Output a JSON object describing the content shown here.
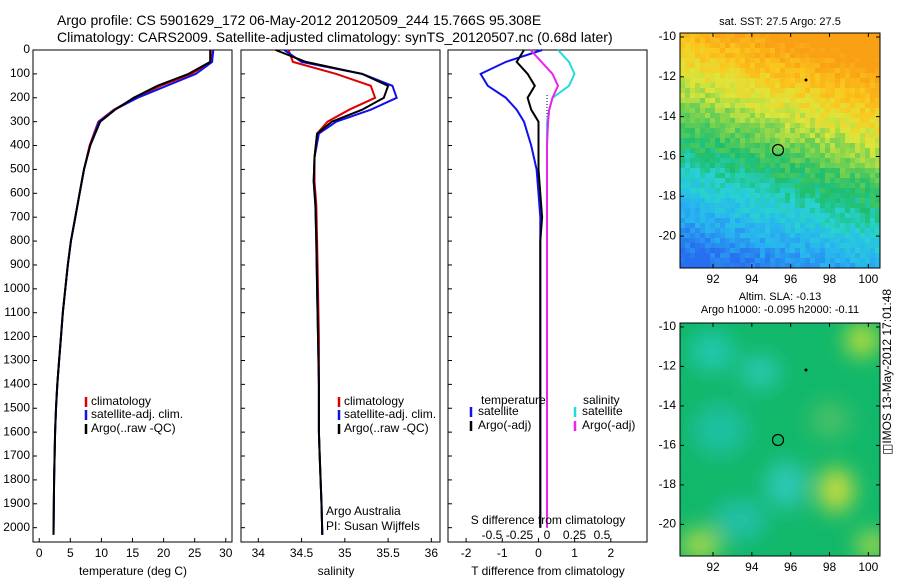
{
  "header": {
    "line1": "Argo profile: CS 5901629_172 06-May-2012 20120509_244 15.766S 95.308E",
    "line2": "Climatology: CARS2009. Satellite-adjusted climatology: synTS_20120507.nc (0.68d later)"
  },
  "colors": {
    "red": "#dd0000",
    "blue": "#1010ee",
    "black": "#000000",
    "cyan": "#22dddd",
    "magenta": "#ee22ee"
  },
  "panels": {
    "temp": {
      "xlabel": "temperature (deg C)",
      "xticks": [
        "0",
        "5",
        "10",
        "15",
        "20",
        "25",
        "30"
      ],
      "legend": [
        "climatology",
        "satellite-adj. clim.",
        "Argo(..raw -QC)"
      ]
    },
    "sal": {
      "xlabel": "salinity",
      "xticks": [
        "34",
        "34.5",
        "35",
        "35.5",
        "36"
      ],
      "legend": [
        "climatology",
        "satellite-adj. clim.",
        "Argo(..raw -QC)"
      ],
      "credit1": "Argo Australia",
      "credit2": "PI: Susan Wijffels"
    },
    "diff": {
      "xlabel": "T difference from climatology",
      "xticks": [
        "-2",
        "-1",
        "0",
        "1",
        "2"
      ],
      "top_label": "S difference from climatology",
      "top_ticks": [
        "-0.5",
        "-0.25",
        "0",
        "0.25",
        "0.5"
      ],
      "legend_left_title": "temperature",
      "legend_left": [
        "satellite",
        "Argo(-adj)"
      ],
      "legend_right_title": "salinity",
      "legend_right": [
        "satellite",
        "Argo(-adj)"
      ]
    },
    "yticks": [
      "0",
      "100",
      "200",
      "300",
      "400",
      "500",
      "600",
      "700",
      "800",
      "900",
      "1000",
      "1100",
      "1200",
      "1300",
      "1400",
      "1500",
      "1600",
      "1700",
      "1800",
      "1900",
      "2000"
    ],
    "sst_title": "sat. SST: 27.5 Argo: 27.5",
    "sla_title1": "Altim. SLA: -0.13",
    "sla_title2": "Argo h1000: -0.095 h2000: -0.11",
    "map_yticks": [
      "-10",
      "-12",
      "-14",
      "-16",
      "-18",
      "-20"
    ],
    "map_xticks": [
      "92",
      "94",
      "96",
      "98",
      "100"
    ]
  },
  "side_label": "IMOS 13-May-2012 17:01:48",
  "chart_data": [
    {
      "type": "line",
      "title": "",
      "xlabel": "temperature (deg C)",
      "ylabel": "",
      "xlim": [
        -1,
        31
      ],
      "ylim": [
        2060,
        0
      ],
      "series": [
        {
          "name": "climatology",
          "x": [
            27.9,
            27.6,
            24.5,
            19.5,
            15.5,
            12.0,
            9.5,
            8.1,
            7.2,
            6.5,
            5.8,
            5.1,
            4.6,
            4.2,
            3.8,
            3.5,
            3.2,
            2.9,
            2.7,
            2.55,
            2.4,
            2.3
          ],
          "y": [
            0,
            50,
            100,
            150,
            200,
            250,
            300,
            400,
            500,
            600,
            700,
            800,
            900,
            1000,
            1100,
            1200,
            1300,
            1400,
            1500,
            1600,
            1800,
            2030
          ]
        },
        {
          "name": "satellite-adj. clim.",
          "x": [
            28.0,
            27.8,
            25.2,
            20.5,
            15.8,
            12.1,
            9.6,
            8.2,
            7.2,
            6.5,
            5.8,
            5.1,
            4.6,
            4.2,
            3.8,
            3.5,
            3.2,
            2.9,
            2.7,
            2.55,
            2.4,
            2.3
          ],
          "y": [
            0,
            50,
            100,
            150,
            200,
            250,
            300,
            400,
            500,
            600,
            700,
            800,
            900,
            1000,
            1100,
            1200,
            1300,
            1400,
            1500,
            1600,
            1800,
            2030
          ]
        },
        {
          "name": "Argo(..raw -QC)",
          "x": [
            27.5,
            27.5,
            24.0,
            19.0,
            15.2,
            12.2,
            9.8,
            8.2,
            7.2,
            6.5,
            5.8,
            5.1,
            4.6,
            4.2,
            3.8,
            3.5,
            3.2,
            2.9,
            2.7,
            2.55,
            2.4,
            2.3
          ],
          "y": [
            0,
            50,
            100,
            150,
            200,
            250,
            300,
            400,
            500,
            600,
            700,
            800,
            900,
            1000,
            1100,
            1200,
            1300,
            1400,
            1500,
            1600,
            1800,
            2030
          ]
        }
      ]
    },
    {
      "type": "line",
      "title": "",
      "xlabel": "salinity",
      "ylabel": "",
      "xlim": [
        33.8,
        36.1
      ],
      "ylim": [
        2060,
        0
      ],
      "series": [
        {
          "name": "climatology",
          "x": [
            34.35,
            34.4,
            34.9,
            35.3,
            35.35,
            35.05,
            34.8,
            34.68,
            34.65,
            34.65,
            34.67,
            34.68,
            34.69,
            34.7,
            34.7,
            34.7,
            34.71,
            34.72,
            34.73,
            34.74
          ],
          "y": [
            0,
            50,
            100,
            150,
            200,
            250,
            300,
            350,
            450,
            550,
            650,
            800,
            1000,
            1200,
            1400,
            1600,
            1700,
            1800,
            1900,
            2030
          ]
        },
        {
          "name": "satellite-adj. clim.",
          "x": [
            34.3,
            34.5,
            35.2,
            35.55,
            35.6,
            35.3,
            34.9,
            34.7,
            34.65,
            34.64,
            34.66,
            34.67,
            34.68,
            34.69,
            34.7,
            34.7,
            34.71,
            34.72,
            34.73,
            34.74
          ],
          "y": [
            0,
            50,
            100,
            150,
            200,
            250,
            300,
            350,
            450,
            550,
            650,
            800,
            1000,
            1200,
            1400,
            1600,
            1700,
            1800,
            1900,
            2030
          ]
        },
        {
          "name": "Argo(..raw -QC)",
          "x": [
            34.2,
            34.55,
            35.2,
            35.5,
            35.45,
            35.2,
            34.85,
            34.68,
            34.65,
            34.64,
            34.66,
            34.67,
            34.68,
            34.69,
            34.7,
            34.7,
            34.71,
            34.72,
            34.73,
            34.74
          ],
          "y": [
            0,
            50,
            100,
            150,
            200,
            250,
            300,
            350,
            450,
            550,
            650,
            800,
            1000,
            1200,
            1400,
            1600,
            1700,
            1800,
            1900,
            2030
          ]
        }
      ]
    },
    {
      "type": "line",
      "title": "",
      "xlabel": "T difference from climatology",
      "ylabel": "",
      "xlim": [
        -2.5,
        3.0
      ],
      "ylim": [
        2060,
        0
      ],
      "series": [
        {
          "name": "temperature satellite",
          "x": [
            0.1,
            -0.9,
            -1.6,
            -1.4,
            -0.9,
            -0.6,
            -0.4,
            -0.2,
            -0.05,
            0.0,
            0.05,
            0.05,
            0.05,
            0.05,
            0.05,
            0.05,
            0.05,
            0.05,
            0.05
          ],
          "y": [
            0,
            50,
            100,
            150,
            200,
            250,
            300,
            400,
            500,
            600,
            700,
            800,
            1000,
            1200,
            1400,
            1600,
            1800,
            1900,
            2000
          ]
        },
        {
          "name": "temperature Argo(-adj)",
          "x": [
            -0.4,
            -0.6,
            -0.3,
            -0.1,
            -0.3,
            -0.2,
            0.0,
            0.0,
            0.0,
            0.05,
            0.1,
            0.05,
            0.05,
            0.05,
            0.05,
            0.05,
            0.05,
            0.05,
            0.05
          ],
          "y": [
            0,
            50,
            100,
            150,
            200,
            250,
            300,
            400,
            500,
            600,
            700,
            800,
            1000,
            1200,
            1400,
            1600,
            1800,
            1900,
            2000
          ]
        },
        {
          "name": "salinity satellite",
          "x": [
            0.1,
            0.2,
            0.25,
            0.2,
            0.05,
            0.02,
            0.0,
            0.0,
            0.0,
            0.0,
            0.0,
            0.0,
            0.0,
            0.0,
            0.0,
            0.0,
            0.0,
            0.0,
            0.0
          ],
          "y": [
            0,
            50,
            100,
            150,
            200,
            250,
            300,
            400,
            500,
            600,
            700,
            800,
            1000,
            1200,
            1400,
            1600,
            1800,
            1900,
            2000
          ]
        },
        {
          "name": "salinity Argo(-adj)",
          "x": [
            -0.15,
            -0.05,
            0.05,
            0.1,
            0.05,
            0.02,
            0.01,
            0.0,
            0.0,
            0.0,
            0.0,
            0.0,
            0.0,
            0.0,
            0.0,
            0.0,
            0.0,
            0.0,
            0.0
          ],
          "y": [
            0,
            50,
            100,
            150,
            200,
            250,
            300,
            400,
            500,
            600,
            700,
            800,
            1000,
            1200,
            1400,
            1600,
            1800,
            1900,
            2000
          ]
        }
      ]
    },
    {
      "type": "heatmap",
      "title": "sat. SST: 27.5 Argo: 27.5",
      "xlim": [
        90.3,
        100.6
      ],
      "ylim": [
        -21.6,
        -9.8
      ],
      "xticks": [
        92,
        94,
        96,
        98,
        100
      ],
      "yticks": [
        -10,
        -12,
        -14,
        -16,
        -18,
        -20
      ],
      "marker": {
        "lon": 95.3,
        "lat": -15.8
      }
    },
    {
      "type": "heatmap",
      "title": "Altim. SLA: -0.13",
      "xlim": [
        90.3,
        100.6
      ],
      "ylim": [
        -21.6,
        -9.8
      ],
      "xticks": [
        92,
        94,
        96,
        98,
        100
      ],
      "yticks": [
        -10,
        -12,
        -14,
        -16,
        -18,
        -20
      ],
      "marker": {
        "lon": 95.3,
        "lat": -15.8
      }
    }
  ]
}
